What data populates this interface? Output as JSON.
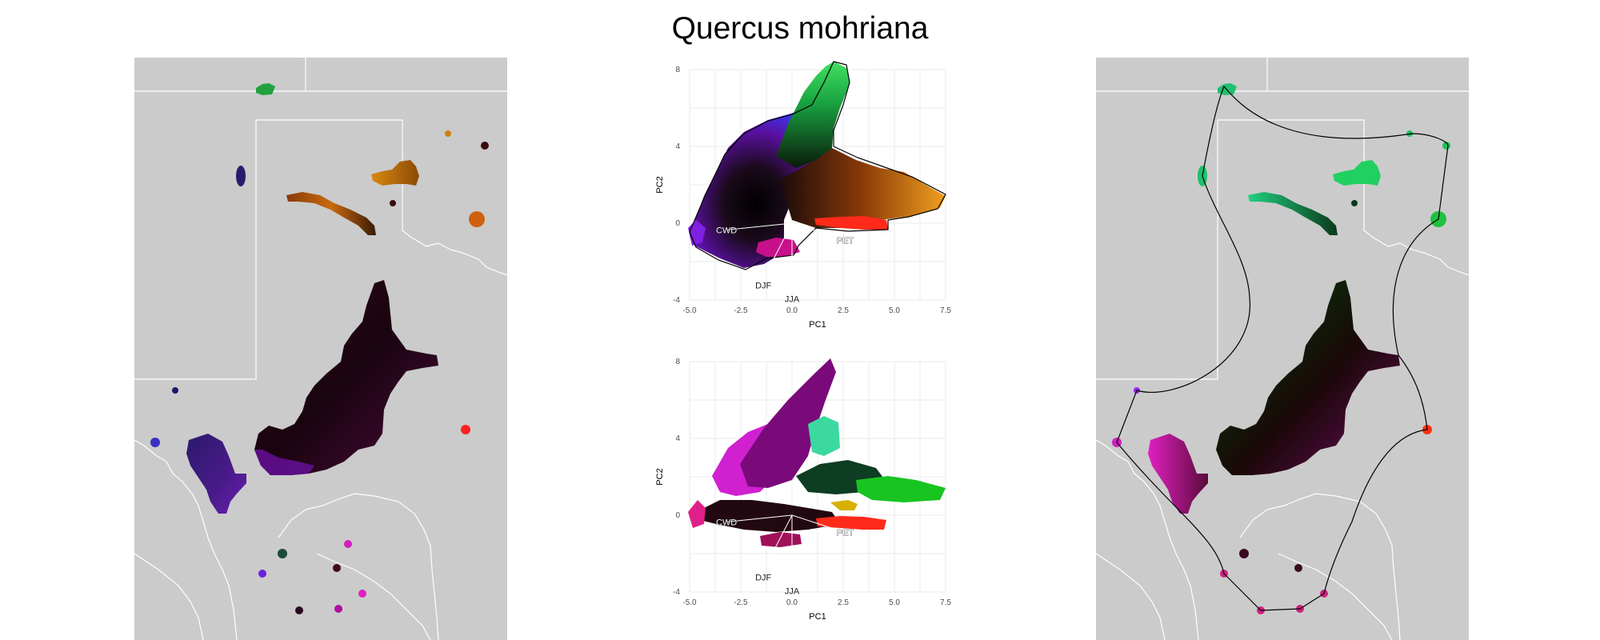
{
  "title": "Quercus mohriana",
  "colors": {
    "map_bg": "#cbcbcb",
    "border": "#ffffff",
    "grid": "#ebebeb",
    "hull": "#000000"
  },
  "chart_data": [
    {
      "type": "scatter",
      "panel": "pca-color-space",
      "xlabel": "PC1",
      "ylabel": "PC2",
      "xlim": [
        -5.0,
        7.5
      ],
      "ylim": [
        -4,
        8
      ],
      "xticks": [
        "-5.0",
        "-2.5",
        "0.0",
        "2.5",
        "5.0",
        "7.5"
      ],
      "yticks": [
        "-4",
        "0",
        "4",
        "8"
      ],
      "grid": true,
      "vectors": [
        {
          "label": "CWD",
          "x": -3.2,
          "y": -0.35
        },
        {
          "label": "PET",
          "x": 2.6,
          "y": -0.9
        },
        {
          "label": "DJF",
          "x": -1.4,
          "y": -2.9
        },
        {
          "label": "JJA",
          "x": 0.0,
          "y": -3.6
        }
      ]
    },
    {
      "type": "scatter",
      "panel": "pca-clusters",
      "xlabel": "PC1",
      "ylabel": "PC2",
      "xlim": [
        -5.0,
        7.5
      ],
      "ylim": [
        -4,
        8
      ],
      "xticks": [
        "-5.0",
        "-2.5",
        "0.0",
        "2.5",
        "5.0",
        "7.5"
      ],
      "yticks": [
        "-4",
        "0",
        "4",
        "8"
      ],
      "grid": true,
      "vectors": [
        {
          "label": "CWD",
          "x": -3.2,
          "y": -0.35
        },
        {
          "label": "PET",
          "x": 2.6,
          "y": -0.9
        },
        {
          "label": "DJF",
          "x": -1.4,
          "y": -2.9
        },
        {
          "label": "JJA",
          "x": 0.0,
          "y": -3.6
        }
      ],
      "series_colors": [
        "#d020d0",
        "#7a0a7a",
        "#3bd9a0",
        "#0d3d22",
        "#18c420",
        "#ff2a1a",
        "#d8b000",
        "#220810",
        "#e0208a"
      ]
    }
  ]
}
